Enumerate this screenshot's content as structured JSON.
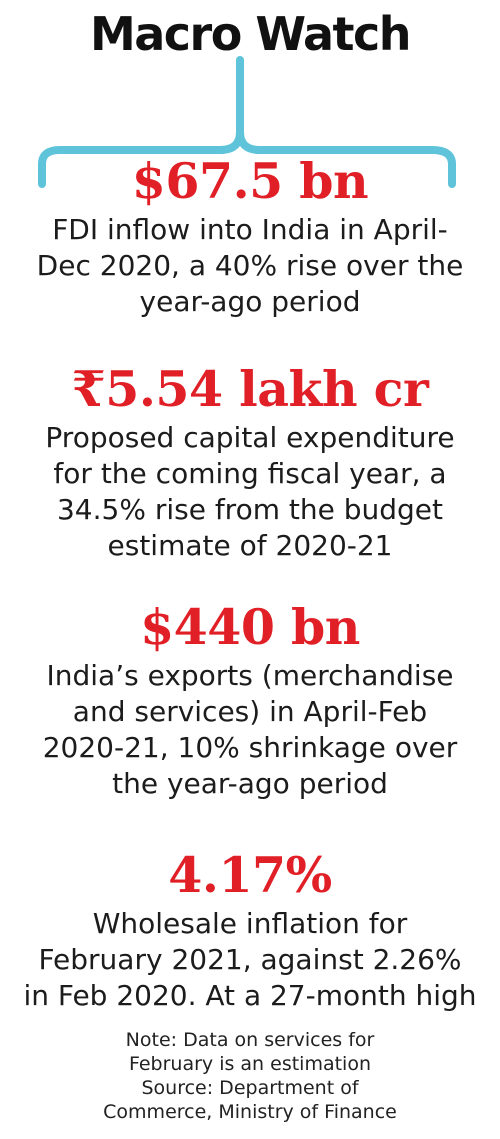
{
  "title": "Macro Watch",
  "colors": {
    "accent_red": "#e11f26",
    "brace_teal": "#5fc4d9",
    "text": "#1c1c1c"
  },
  "stats": [
    {
      "value": "$67.5 bn",
      "lines": [
        "FDI inflow into India in April-",
        "Dec 2020, a 40% rise over the",
        "year-ago period"
      ]
    },
    {
      "value": "₹5.54 lakh cr",
      "lines": [
        "Proposed capital expenditure",
        "for the coming fiscal year, a",
        "34.5% rise from the budget",
        "estimate of 2020-21"
      ]
    },
    {
      "value": "$440 bn",
      "lines": [
        "India’s exports (merchandise",
        "and services) in April-Feb",
        "2020-21, 10% shrinkage over",
        "the year-ago period"
      ]
    },
    {
      "value": "4.17%",
      "lines": [
        "Wholesale inflation for",
        "February 2021, against 2.26%",
        "in Feb 2020. At a 27-month high"
      ]
    }
  ],
  "footnote": {
    "lines": [
      "Note: Data on services for",
      "February is an estimation",
      "Source: Department of",
      "Commerce, Ministry of Finance"
    ]
  }
}
